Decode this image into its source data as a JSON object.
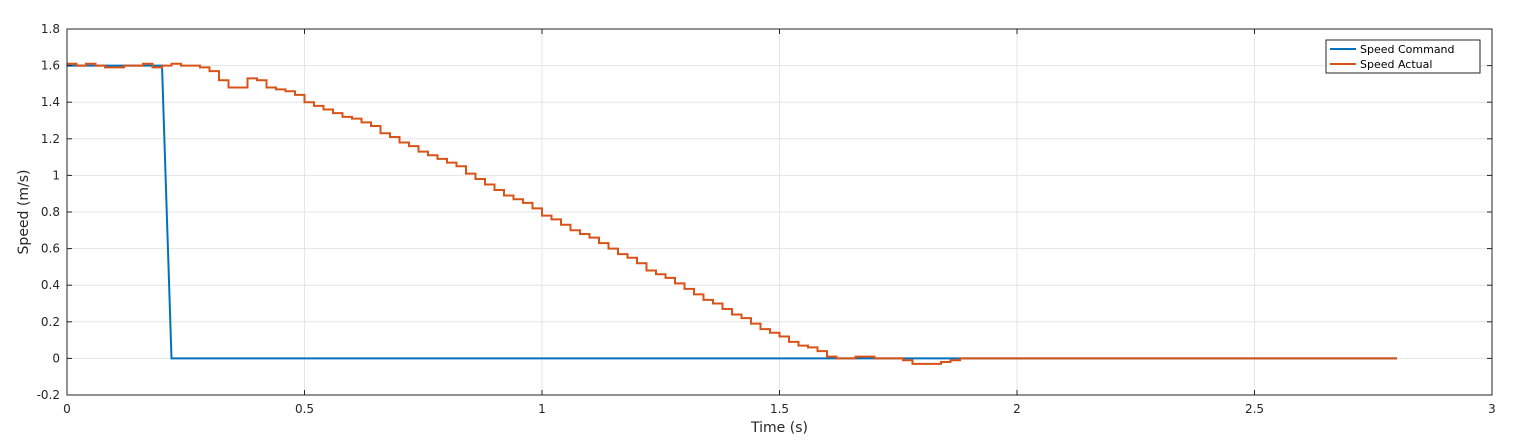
{
  "chart_data": {
    "type": "line",
    "xlabel": "Time (s)",
    "ylabel": "Speed (m/s)",
    "xlim": [
      0,
      3
    ],
    "ylim": [
      -0.2,
      1.8
    ],
    "xticks": [
      0,
      0.5,
      1,
      1.5,
      2,
      2.5,
      3
    ],
    "xtick_labels": [
      "0",
      "0.5",
      "1",
      "1.5",
      "2",
      "2.5",
      "3"
    ],
    "yticks": [
      -0.2,
      0,
      0.2,
      0.4,
      0.6,
      0.8,
      1,
      1.2,
      1.4,
      1.6,
      1.8
    ],
    "ytick_labels": [
      "-0.2",
      "0",
      "0.2",
      "0.4",
      "0.6",
      "0.8",
      "1",
      "1.2",
      "1.4",
      "1.6",
      "1.8"
    ],
    "grid": true,
    "legend_position": "top-right",
    "series": [
      {
        "name": "Speed Command",
        "color": "#0072BD",
        "style": "line",
        "x": [
          0,
          0.2,
          0.22,
          2.8
        ],
        "y": [
          1.6,
          1.6,
          0,
          0
        ]
      },
      {
        "name": "Speed Actual",
        "color": "#D95319",
        "style": "step",
        "x": [
          0,
          0.02,
          0.04,
          0.06,
          0.08,
          0.1,
          0.12,
          0.14,
          0.16,
          0.18,
          0.2,
          0.22,
          0.24,
          0.26,
          0.28,
          0.3,
          0.32,
          0.34,
          0.36,
          0.38,
          0.4,
          0.42,
          0.44,
          0.46,
          0.48,
          0.5,
          0.52,
          0.54,
          0.56,
          0.58,
          0.6,
          0.62,
          0.64,
          0.66,
          0.68,
          0.7,
          0.72,
          0.74,
          0.76,
          0.78,
          0.8,
          0.82,
          0.84,
          0.86,
          0.88,
          0.9,
          0.92,
          0.94,
          0.96,
          0.98,
          1.0,
          1.02,
          1.04,
          1.06,
          1.08,
          1.1,
          1.12,
          1.14,
          1.16,
          1.18,
          1.2,
          1.22,
          1.24,
          1.26,
          1.28,
          1.3,
          1.32,
          1.34,
          1.36,
          1.38,
          1.4,
          1.42,
          1.44,
          1.46,
          1.48,
          1.5,
          1.52,
          1.54,
          1.56,
          1.58,
          1.6,
          1.62,
          1.64,
          1.66,
          1.68,
          1.7,
          1.72,
          1.74,
          1.76,
          1.78,
          1.8,
          1.82,
          1.84,
          1.86,
          1.88,
          1.9,
          2.8
        ],
        "y": [
          1.61,
          1.6,
          1.61,
          1.6,
          1.59,
          1.59,
          1.6,
          1.6,
          1.61,
          1.59,
          1.6,
          1.61,
          1.6,
          1.6,
          1.59,
          1.57,
          1.52,
          1.48,
          1.48,
          1.53,
          1.52,
          1.48,
          1.47,
          1.46,
          1.44,
          1.4,
          1.38,
          1.36,
          1.34,
          1.32,
          1.31,
          1.29,
          1.27,
          1.23,
          1.21,
          1.18,
          1.16,
          1.13,
          1.11,
          1.09,
          1.07,
          1.05,
          1.01,
          0.98,
          0.95,
          0.92,
          0.89,
          0.87,
          0.85,
          0.82,
          0.78,
          0.76,
          0.73,
          0.7,
          0.68,
          0.66,
          0.63,
          0.6,
          0.57,
          0.55,
          0.52,
          0.48,
          0.46,
          0.44,
          0.41,
          0.38,
          0.35,
          0.32,
          0.3,
          0.27,
          0.24,
          0.22,
          0.19,
          0.16,
          0.14,
          0.12,
          0.09,
          0.07,
          0.06,
          0.04,
          0.01,
          0.0,
          0.0,
          0.01,
          0.01,
          0.0,
          0.0,
          0.0,
          -0.01,
          -0.03,
          -0.03,
          -0.03,
          -0.02,
          -0.01,
          0.0,
          0.0,
          0.0
        ]
      }
    ]
  }
}
